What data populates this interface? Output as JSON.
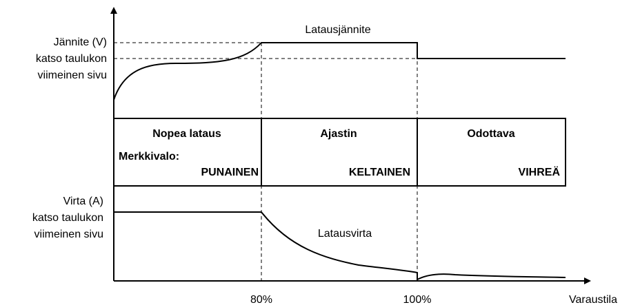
{
  "voltage_label": [
    "Jännite (V)",
    "katso taulukon",
    "viimeinen sivu"
  ],
  "voltage_curve": "Latausjännite",
  "stages": [
    {
      "name": "Nopea lataus",
      "light": "PUNAINEN"
    },
    {
      "name": "Ajastin",
      "light": "KELTAINEN"
    },
    {
      "name": "Odottava",
      "light": "VIHREÄ"
    }
  ],
  "light_label": "Merkkivalo:",
  "current_label": [
    "Virta (A)",
    "katso taulukon",
    "viimeinen sivu"
  ],
  "current_curve": "Latausvirta",
  "x_marks": [
    "80%",
    "100%"
  ],
  "x_axis_label": "Varaustila"
}
